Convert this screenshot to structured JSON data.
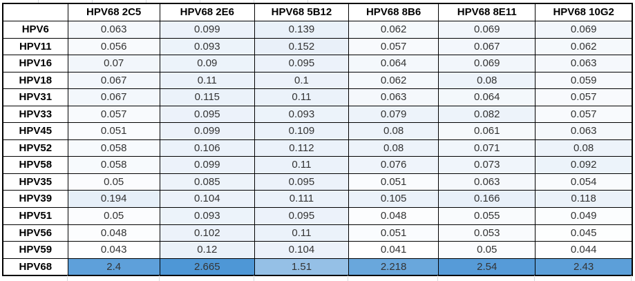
{
  "table": {
    "corner_label": "",
    "columns": [
      "HPV68 2C5",
      "HPV68 2E6",
      "HPV68 5B12",
      "HPV68 8B6",
      "HPV68 8E11",
      "HPV68 10G2"
    ],
    "rows": [
      {
        "label": "HPV6",
        "values": [
          0.063,
          0.099,
          0.139,
          0.062,
          0.069,
          0.069
        ]
      },
      {
        "label": "HPV11",
        "values": [
          0.056,
          0.093,
          0.152,
          0.057,
          0.067,
          0.062
        ]
      },
      {
        "label": "HPV16",
        "values": [
          0.07,
          0.09,
          0.095,
          0.064,
          0.069,
          0.063
        ]
      },
      {
        "label": "HPV18",
        "values": [
          0.067,
          0.11,
          0.1,
          0.062,
          0.08,
          0.059
        ]
      },
      {
        "label": "HPV31",
        "values": [
          0.067,
          0.115,
          0.11,
          0.063,
          0.064,
          0.057
        ]
      },
      {
        "label": "HPV33",
        "values": [
          0.057,
          0.095,
          0.093,
          0.079,
          0.082,
          0.057
        ]
      },
      {
        "label": "HPV45",
        "values": [
          0.051,
          0.099,
          0.109,
          0.08,
          0.061,
          0.063
        ]
      },
      {
        "label": "HPV52",
        "values": [
          0.058,
          0.106,
          0.112,
          0.08,
          0.071,
          0.08
        ]
      },
      {
        "label": "HPV58",
        "values": [
          0.058,
          0.099,
          0.11,
          0.076,
          0.073,
          0.092
        ]
      },
      {
        "label": "HPV35",
        "values": [
          0.05,
          0.085,
          0.095,
          0.051,
          0.063,
          0.054
        ]
      },
      {
        "label": "HPV39",
        "values": [
          0.194,
          0.104,
          0.111,
          0.105,
          0.166,
          0.118
        ]
      },
      {
        "label": "HPV51",
        "values": [
          0.05,
          0.093,
          0.095,
          0.048,
          0.055,
          0.049
        ]
      },
      {
        "label": "HPV56",
        "values": [
          0.048,
          0.102,
          0.11,
          0.051,
          0.053,
          0.045
        ]
      },
      {
        "label": "HPV59",
        "values": [
          0.043,
          0.12,
          0.104,
          0.041,
          0.05,
          0.044
        ]
      },
      {
        "label": "HPV68",
        "values": [
          2.4,
          2.665,
          1.51,
          2.218,
          2.54,
          2.43
        ]
      }
    ]
  },
  "conditional_format": {
    "min": {
      "value": 0.041,
      "color": "#ffffff"
    },
    "mid": {
      "value": 0.08,
      "color": "#edf3fa"
    },
    "max": {
      "value": 2.665,
      "color": "#4e97d6"
    }
  },
  "colors": {
    "table_border": "#000000",
    "header_background": "#ffffff",
    "value_text": "#333333",
    "label_text": "#000000",
    "sheet_gridline": "#d6d9dd"
  },
  "chart_data": {
    "type": "table",
    "title": "",
    "columns": [
      "HPV68 2C5",
      "HPV68 2E6",
      "HPV68 5B12",
      "HPV68 8B6",
      "HPV68 8E11",
      "HPV68 10G2"
    ],
    "row_labels": [
      "HPV6",
      "HPV11",
      "HPV16",
      "HPV18",
      "HPV31",
      "HPV33",
      "HPV45",
      "HPV52",
      "HPV58",
      "HPV35",
      "HPV39",
      "HPV51",
      "HPV56",
      "HPV59",
      "HPV68"
    ],
    "values": [
      [
        0.063,
        0.099,
        0.139,
        0.062,
        0.069,
        0.069
      ],
      [
        0.056,
        0.093,
        0.152,
        0.057,
        0.067,
        0.062
      ],
      [
        0.07,
        0.09,
        0.095,
        0.064,
        0.069,
        0.063
      ],
      [
        0.067,
        0.11,
        0.1,
        0.062,
        0.08,
        0.059
      ],
      [
        0.067,
        0.115,
        0.11,
        0.063,
        0.064,
        0.057
      ],
      [
        0.057,
        0.095,
        0.093,
        0.079,
        0.082,
        0.057
      ],
      [
        0.051,
        0.099,
        0.109,
        0.08,
        0.061,
        0.063
      ],
      [
        0.058,
        0.106,
        0.112,
        0.08,
        0.071,
        0.08
      ],
      [
        0.058,
        0.099,
        0.11,
        0.076,
        0.073,
        0.092
      ],
      [
        0.05,
        0.085,
        0.095,
        0.051,
        0.063,
        0.054
      ],
      [
        0.194,
        0.104,
        0.111,
        0.105,
        0.166,
        0.118
      ],
      [
        0.05,
        0.093,
        0.095,
        0.048,
        0.055,
        0.049
      ],
      [
        0.048,
        0.102,
        0.11,
        0.051,
        0.053,
        0.045
      ],
      [
        0.043,
        0.12,
        0.104,
        0.041,
        0.05,
        0.044
      ],
      [
        2.4,
        2.665,
        1.51,
        2.218,
        2.54,
        2.43
      ]
    ],
    "color_scale": {
      "style": "white-to-blue",
      "min": 0.041,
      "max": 2.665
    },
    "grid": true,
    "legend": false
  }
}
